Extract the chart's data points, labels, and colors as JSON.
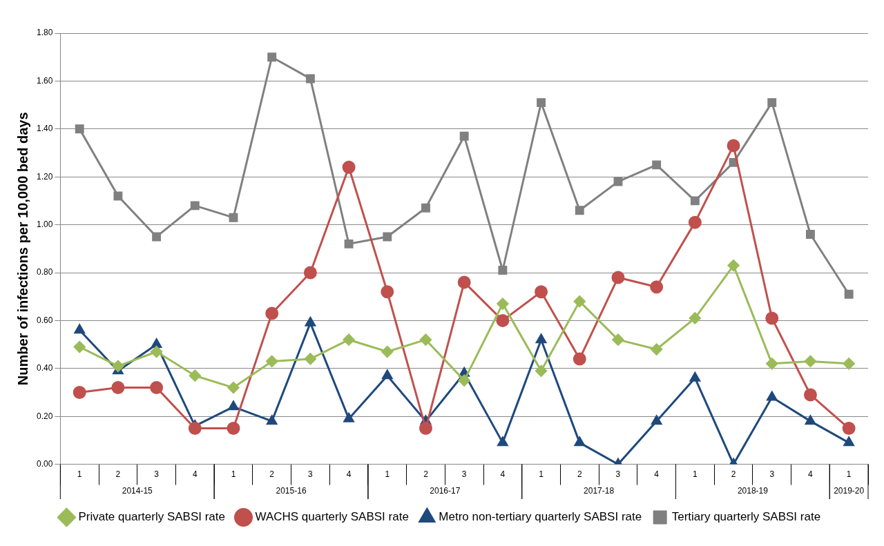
{
  "chart_data": {
    "type": "line",
    "ylabel": "Number of infections per 10,000 bed days",
    "categories": [
      "1",
      "2",
      "3",
      "4",
      "1",
      "2",
      "3",
      "4",
      "1",
      "2",
      "3",
      "4",
      "1",
      "2",
      "3",
      "4",
      "1",
      "2",
      "3",
      "4",
      "1"
    ],
    "annotations": [
      "2014-15",
      "2015-16",
      "2016-17",
      "2017-18",
      "2018-19",
      "2019-20"
    ],
    "series": [
      {
        "name": "Tertiary quarterly SABSI rate",
        "color": "#808080",
        "marker": "square",
        "values": [
          1.4,
          1.12,
          0.95,
          1.08,
          1.03,
          1.7,
          1.61,
          0.92,
          0.95,
          1.07,
          1.37,
          0.81,
          1.51,
          1.06,
          1.18,
          1.25,
          1.1,
          1.26,
          1.51,
          0.96,
          0.71
        ]
      },
      {
        "name": "Metro non-tertiary quarterly SABSI rate",
        "color": "#1f497d",
        "marker": "triangle",
        "values": [
          0.56,
          0.39,
          0.5,
          0.16,
          0.24,
          0.18,
          0.59,
          0.19,
          0.37,
          0.18,
          0.38,
          0.09,
          0.52,
          0.09,
          0.0,
          0.18,
          0.36,
          0.0,
          0.28,
          0.18,
          0.09
        ]
      },
      {
        "name": "WACHS quarterly SABSI rate",
        "color": "#c0504d",
        "marker": "circle",
        "values": [
          0.3,
          0.32,
          0.32,
          0.15,
          0.15,
          0.63,
          0.8,
          1.24,
          0.72,
          0.15,
          0.76,
          0.6,
          0.72,
          0.44,
          0.78,
          0.74,
          1.01,
          1.33,
          0.61,
          0.29,
          0.15
        ]
      },
      {
        "name": "Private quarterly SABSI rate",
        "color": "#9bbb59",
        "marker": "diamond",
        "values": [
          0.49,
          0.41,
          0.47,
          0.37,
          0.32,
          0.43,
          0.44,
          0.52,
          0.47,
          0.52,
          0.35,
          0.67,
          0.39,
          0.68,
          0.52,
          0.48,
          0.61,
          0.83,
          0.42,
          0.43,
          0.42
        ]
      }
    ],
    "ylim": [
      0,
      1.8
    ],
    "yticks": [
      {
        "value": 0,
        "label": "0.00"
      },
      {
        "value": 0.2,
        "label": "0.20"
      },
      {
        "value": 0.4,
        "label": "0.40"
      },
      {
        "value": 0.6,
        "label": "0.60"
      },
      {
        "value": 0.8,
        "label": "0.80"
      },
      {
        "value": 1.0,
        "label": "1.00"
      },
      {
        "value": 1.2,
        "label": "1.20"
      },
      {
        "value": 1.4,
        "label": "1.40"
      },
      {
        "value": 1.6,
        "label": "1.60"
      },
      {
        "value": 1.8,
        "label": "1.80"
      }
    ],
    "grid": "y",
    "legend": "bottom",
    "line_style": "solid"
  }
}
